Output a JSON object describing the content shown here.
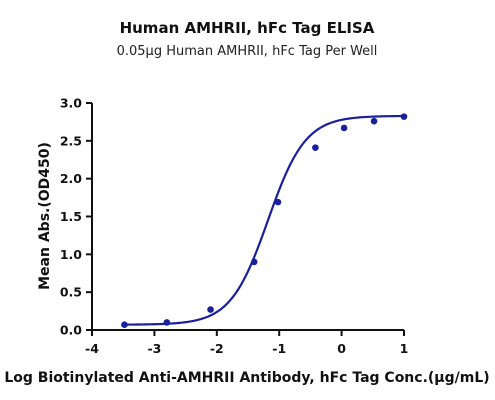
{
  "chart_data": {
    "type": "line",
    "title": "Human AMHRII, hFc Tag ELISA",
    "subtitle": "0.05μg Human AMHRII, hFc Tag Per Well",
    "xlabel": "Log Biotinylated Anti-AMHRII Antibody, hFc Tag Conc.(μg/mL)",
    "ylabel": "Mean Abs.(OD450)",
    "xlim": [
      -4,
      1
    ],
    "ylim": [
      0,
      3.0
    ],
    "x_ticks": [
      "-4",
      "-3",
      "-2",
      "-1",
      "0",
      "1"
    ],
    "y_ticks": [
      "0.0",
      "0.5",
      "1.0",
      "1.5",
      "2.0",
      "2.5",
      "3.0"
    ],
    "grid": false,
    "legend": "none",
    "color": "#1a1f9a",
    "series": [
      {
        "x": [
          -3.48,
          -2.8,
          -2.1,
          -1.4,
          -1.02,
          -0.42,
          0.04,
          0.52,
          1.0
        ],
        "values": [
          0.07,
          0.1,
          0.27,
          0.9,
          1.69,
          2.41,
          2.67,
          2.76,
          2.82
        ]
      }
    ],
    "fit": {
      "model": "4PL",
      "bottom": 0.07,
      "top": 2.83,
      "log_ec50": -1.18,
      "hill_slope": 1.45
    }
  }
}
